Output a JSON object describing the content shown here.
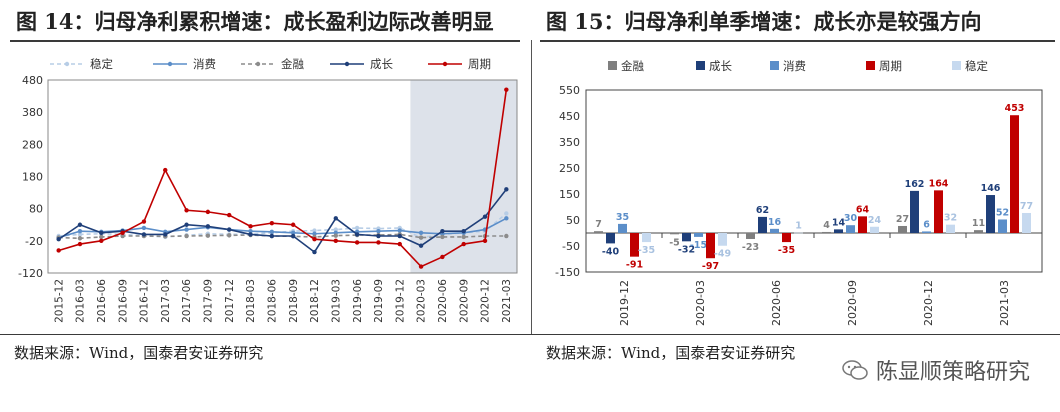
{
  "page": {
    "left_title": "图 14：归母净利累积增速：成长盈利边际改善明显",
    "right_title": "图 15：归母净利单季增速：成长亦是较强方向",
    "left_source": "数据来源：Wind，国泰君安证券研究",
    "right_source": "数据来源：Wind，国泰君安证券研究",
    "watermark": "陈显顺策略研究"
  },
  "chart_data": [
    {
      "type": "line",
      "title": "图 14：归母净利累积增速：成长盈利边际改善明显",
      "categories": [
        "2015-12",
        "2016-03",
        "2016-06",
        "2016-09",
        "2016-12",
        "2017-03",
        "2017-06",
        "2017-09",
        "2017-12",
        "2018-03",
        "2018-06",
        "2018-09",
        "2018-12",
        "2019-03",
        "2019-06",
        "2019-09",
        "2019-12",
        "2020-03",
        "2020-06",
        "2020-09",
        "2020-12",
        "2021-03"
      ],
      "ylim": [
        -120,
        480
      ],
      "yticks": [
        -120,
        -20,
        80,
        180,
        280,
        380,
        480
      ],
      "shaded_region": [
        "2020-03",
        "2021-03"
      ],
      "legend_position": "top",
      "grid": false,
      "series": [
        {
          "name": "稳定",
          "color": "#b7cde6",
          "dash": "4,3",
          "values": [
            -5,
            0,
            2,
            0,
            -4,
            -8,
            -3,
            2,
            0,
            1,
            5,
            10,
            12,
            15,
            20,
            18,
            20,
            -10,
            0,
            5,
            10,
            65
          ]
        },
        {
          "name": "消费",
          "color": "#5b8ec9",
          "dash": "",
          "values": [
            -10,
            10,
            8,
            12,
            20,
            8,
            15,
            22,
            15,
            10,
            8,
            5,
            2,
            5,
            8,
            10,
            12,
            5,
            2,
            5,
            15,
            50
          ]
        },
        {
          "name": "金融",
          "color": "#8c8c8c",
          "dash": "4,3",
          "values": [
            -10,
            -12,
            -8,
            -5,
            -5,
            -6,
            -5,
            -4,
            -3,
            -2,
            -5,
            -6,
            -8,
            -4,
            -2,
            -2,
            0,
            -10,
            -8,
            -8,
            -5,
            -5
          ]
        },
        {
          "name": "成长",
          "color": "#1f3f79",
          "dash": "",
          "values": [
            -15,
            30,
            5,
            10,
            0,
            0,
            30,
            25,
            15,
            0,
            -5,
            -5,
            -55,
            50,
            0,
            -5,
            -5,
            -35,
            10,
            10,
            55,
            140
          ]
        },
        {
          "name": "周期",
          "color": "#c00000",
          "dash": "",
          "values": [
            -50,
            -30,
            -20,
            5,
            40,
            200,
            75,
            70,
            60,
            25,
            35,
            30,
            -15,
            -20,
            -25,
            -25,
            -30,
            -100,
            -70,
            -30,
            -20,
            450
          ]
        }
      ]
    },
    {
      "type": "bar",
      "title": "图 15：归母净利单季增速：成长亦是较强方向",
      "categories": [
        "2019-12",
        "2020-03",
        "2020-06",
        "2020-09",
        "2020-12",
        "2021-03"
      ],
      "ylim": [
        -150,
        550
      ],
      "yticks": [
        -150,
        -50,
        50,
        150,
        250,
        350,
        450,
        550
      ],
      "legend_position": "top",
      "grid": false,
      "series": [
        {
          "name": "金融",
          "color": "#7f7f7f",
          "values": [
            7,
            -5,
            -23,
            4,
            27,
            11
          ]
        },
        {
          "name": "成长",
          "color": "#1f3f79",
          "values": [
            -40,
            -32,
            62,
            14,
            162,
            146
          ]
        },
        {
          "name": "消费",
          "color": "#5b8ec9",
          "values": [
            35,
            -15,
            16,
            30,
            6,
            52
          ]
        },
        {
          "name": "周期",
          "color": "#c00000",
          "values": [
            -91,
            -97,
            -35,
            64,
            164,
            453
          ]
        },
        {
          "name": "稳定",
          "color": "#c6d9ef",
          "values": [
            -35,
            -49,
            1,
            24,
            32,
            77
          ]
        }
      ]
    }
  ]
}
